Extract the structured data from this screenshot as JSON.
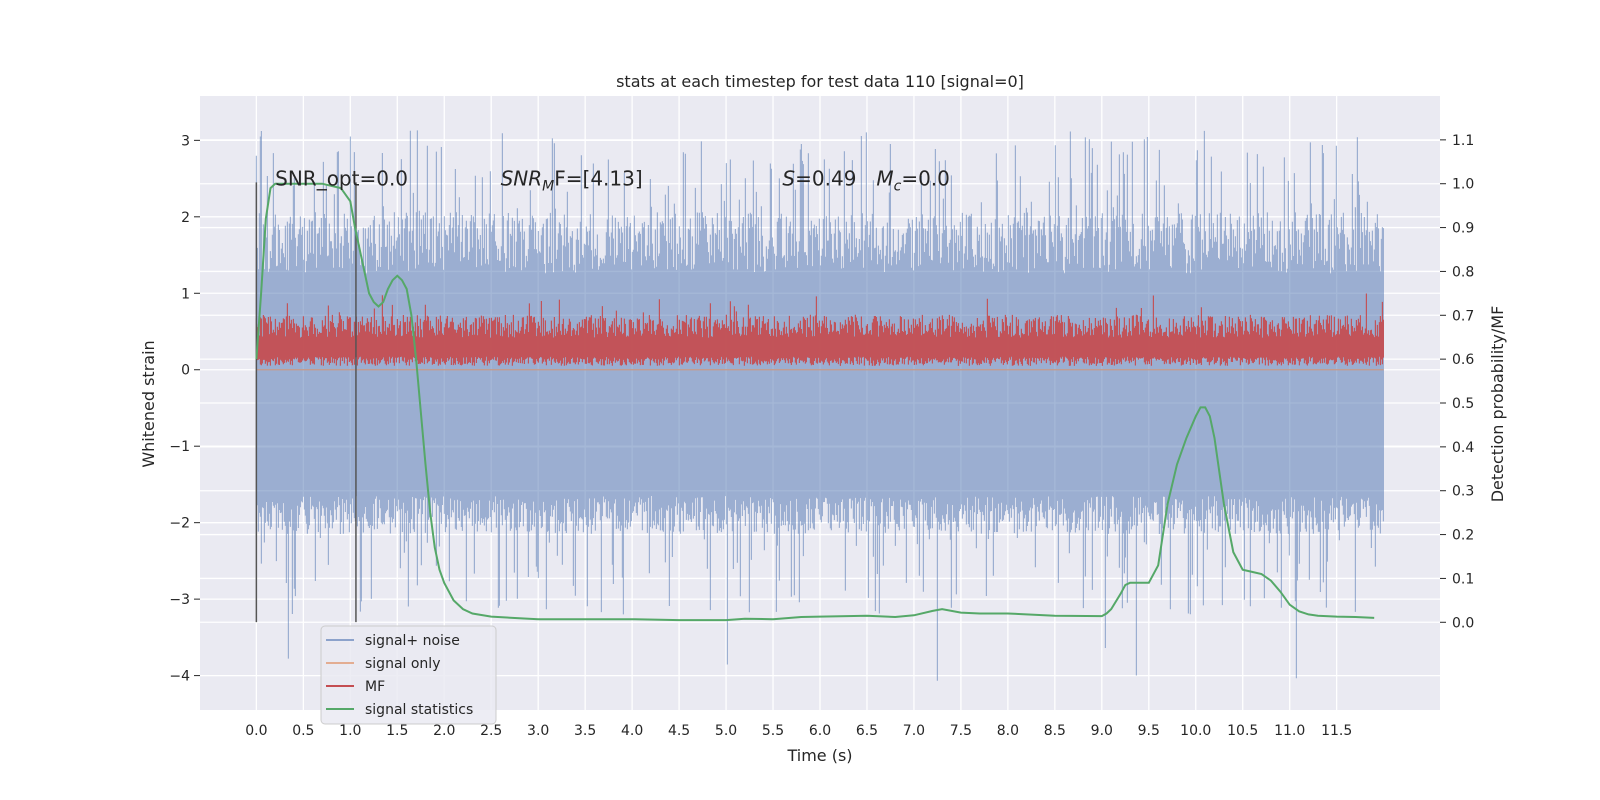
{
  "chart_data": {
    "type": "line",
    "title": "stats at each timestep for test data 110 [signal=0]",
    "xlabel": "Time (s)",
    "ylabel": "Whitened strain",
    "ylabel_right": "Detection probability/MF",
    "xlim": [
      -0.6,
      12.6
    ],
    "ylim": [
      -4.45,
      3.58
    ],
    "ylim_right": [
      -0.2,
      1.2
    ],
    "x_ticks": [
      0.0,
      0.5,
      1.0,
      1.5,
      2.0,
      2.5,
      3.0,
      3.5,
      4.0,
      4.5,
      5.0,
      5.5,
      6.0,
      6.5,
      7.0,
      7.5,
      8.0,
      8.5,
      9.0,
      9.5,
      10.0,
      10.5,
      11.0,
      11.5
    ],
    "x_tick_labels": [
      "0.0",
      "0.5",
      "1.0",
      "1.5",
      "2.0",
      "2.5",
      "3.0",
      "3.5",
      "4.0",
      "4.5",
      "5.0",
      "5.5",
      "6.0",
      "6.5",
      "7.0",
      "7.5",
      "8.0",
      "8.5",
      "9.0",
      "9.5",
      "10.0",
      "10.5",
      "11.0",
      "11.5"
    ],
    "y_ticks": [
      -4,
      -3,
      -2,
      -1,
      0,
      1,
      2,
      3
    ],
    "y_tick_labels": [
      "−4",
      "−3",
      "−2",
      "−1",
      "0",
      "1",
      "2",
      "3"
    ],
    "y_ticks_right": [
      0.0,
      0.1,
      0.2,
      0.3,
      0.4,
      0.5,
      0.6,
      0.7,
      0.8,
      0.9,
      1.0,
      1.1
    ],
    "y_tick_labels_right": [
      "0.0",
      "0.1",
      "0.2",
      "0.3",
      "0.4",
      "0.5",
      "0.6",
      "0.7",
      "0.8",
      "0.9",
      "1.0",
      "1.1"
    ],
    "grid": true,
    "background": "#eaeaf2",
    "legend_position": "lower-left",
    "annotations": [
      {
        "text": "SNR_opt=0.0",
        "x": 0.2,
        "y": 2.5
      },
      {
        "text": "SNR",
        "sub": "M",
        "rest": "F=[4.13]",
        "x": 2.6,
        "y": 2.5
      },
      {
        "text": "S",
        "rest": "=0.49",
        "x": 5.6,
        "y": 2.5
      },
      {
        "text": "M",
        "sub": "c",
        "rest": "=0.0",
        "x": 6.6,
        "y": 2.5
      }
    ],
    "vlines": [
      {
        "x": 0.0,
        "y_range": [
          -3.3,
          2.45
        ],
        "color": "#555555"
      },
      {
        "x": 1.06,
        "y_range": [
          -3.3,
          2.45
        ],
        "color": "#555555"
      }
    ],
    "series": [
      {
        "name": "signal+ noise",
        "color": "#4c72b0",
        "style": "dense noise (envelope)",
        "x_range": [
          0.0,
          12.0
        ],
        "core_range": [
          -2.0,
          1.5
        ],
        "spike_max": 3.25,
        "spike_min": -4.1
      },
      {
        "name": "signal only",
        "color": "#dd8452",
        "style": "line",
        "x": [
          0.0,
          12.0
        ],
        "values": [
          0.0,
          0.0
        ]
      },
      {
        "name": "MF",
        "color": "#c44e52",
        "style": "dense band",
        "x_range": [
          0.0,
          12.0
        ],
        "band_range": [
          0.05,
          0.72
        ],
        "spike_max": 1.0
      },
      {
        "name": "signal statistics",
        "color": "#55a868",
        "style": "line",
        "axis": "right",
        "x": [
          0.0,
          0.05,
          0.1,
          0.15,
          0.2,
          0.3,
          0.4,
          0.5,
          0.6,
          0.7,
          0.8,
          0.9,
          1.0,
          1.05,
          1.1,
          1.15,
          1.2,
          1.25,
          1.3,
          1.35,
          1.4,
          1.45,
          1.5,
          1.55,
          1.6,
          1.65,
          1.7,
          1.75,
          1.8,
          1.85,
          1.9,
          1.95,
          2.0,
          2.1,
          2.2,
          2.3,
          2.5,
          2.8,
          3.0,
          3.5,
          4.0,
          4.5,
          5.0,
          5.2,
          5.5,
          5.8,
          6.0,
          6.5,
          6.8,
          7.0,
          7.2,
          7.3,
          7.5,
          7.7,
          8.0,
          8.5,
          9.0,
          9.05,
          9.1,
          9.2,
          9.25,
          9.3,
          9.4,
          9.5,
          9.6,
          9.7,
          9.8,
          9.9,
          10.0,
          10.05,
          10.1,
          10.15,
          10.2,
          10.3,
          10.4,
          10.5,
          10.6,
          10.7,
          10.8,
          10.9,
          11.0,
          11.1,
          11.2,
          11.3,
          11.5,
          11.7,
          11.9
        ],
        "values": [
          0.6,
          0.75,
          0.92,
          0.99,
          1.0,
          1.0,
          1.0,
          1.0,
          1.0,
          1.0,
          0.995,
          0.99,
          0.96,
          0.9,
          0.85,
          0.8,
          0.75,
          0.73,
          0.72,
          0.73,
          0.76,
          0.78,
          0.79,
          0.78,
          0.76,
          0.7,
          0.6,
          0.48,
          0.36,
          0.25,
          0.17,
          0.12,
          0.09,
          0.05,
          0.03,
          0.02,
          0.013,
          0.009,
          0.007,
          0.007,
          0.007,
          0.005,
          0.005,
          0.008,
          0.007,
          0.012,
          0.013,
          0.015,
          0.012,
          0.016,
          0.026,
          0.03,
          0.022,
          0.02,
          0.02,
          0.015,
          0.014,
          0.02,
          0.03,
          0.065,
          0.085,
          0.09,
          0.09,
          0.09,
          0.13,
          0.27,
          0.36,
          0.42,
          0.47,
          0.49,
          0.49,
          0.47,
          0.42,
          0.27,
          0.16,
          0.12,
          0.115,
          0.11,
          0.095,
          0.07,
          0.04,
          0.025,
          0.018,
          0.015,
          0.013,
          0.012,
          0.01
        ]
      }
    ]
  }
}
